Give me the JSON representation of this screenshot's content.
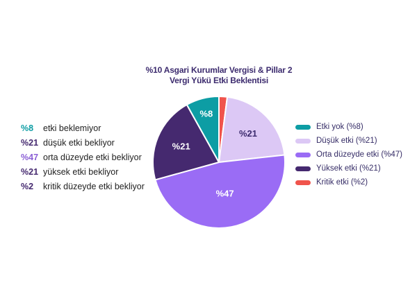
{
  "title": {
    "line1": "%10 Asgari Kurumlar Vergisi & Pillar 2",
    "line2": "Vergi Yükü Etki Beklentisi",
    "color": "#3C2B6E"
  },
  "stats": [
    {
      "pct": "%8",
      "pct_color": "#0D9DA4",
      "label": "etki beklemiyor"
    },
    {
      "pct": "%21",
      "pct_color": "#45296F",
      "label": "düşük etki bekliyor"
    },
    {
      "pct": "%47",
      "pct_color": "#8B5FD6",
      "label": "orta düzeyde etki bekliyor"
    },
    {
      "pct": "%21",
      "pct_color": "#45296F",
      "label": "yüksek etki bekliyor"
    },
    {
      "pct": "%2",
      "pct_color": "#45296F",
      "label": "kritik düzeyde etki bekliyor"
    }
  ],
  "legend": [
    {
      "label": "Etki yok (%8)",
      "color": "#0D9DA4"
    },
    {
      "label": "Düşük etki (%21)",
      "color": "#DCC8F5"
    },
    {
      "label": "Orta düzeyde etki (%47)",
      "color": "#9A6CF5"
    },
    {
      "label": "Yüksek etki (%21)",
      "color": "#45296F"
    },
    {
      "label": "Kritik etki (%2)",
      "color": "#F0544C"
    }
  ],
  "chart_data": {
    "type": "pie",
    "title": "%10 Asgari Kurumlar Vergisi & Pillar 2 Vergi Yükü Etki Beklentisi",
    "start_angle_deg": 0,
    "direction": "clockwise",
    "legend_position": "right",
    "slices": [
      {
        "name": "Kritik etki",
        "value": 2,
        "color": "#F0544C",
        "slice_label": "",
        "label_color": "#FFFFFF"
      },
      {
        "name": "Düşük etki",
        "value": 21,
        "color": "#DCC8F5",
        "slice_label": "%21",
        "label_color": "#3C2B6E"
      },
      {
        "name": "Orta düzeyde etki",
        "value": 47,
        "color": "#9A6CF5",
        "slice_label": "%47",
        "label_color": "#FFFFFF"
      },
      {
        "name": "Yüksek etki",
        "value": 21,
        "color": "#45296F",
        "slice_label": "%21",
        "label_color": "#FFFFFF"
      },
      {
        "name": "Etki yok",
        "value": 8,
        "color": "#0D9DA4",
        "slice_label": "%8",
        "label_color": "#FFFFFF"
      }
    ]
  }
}
